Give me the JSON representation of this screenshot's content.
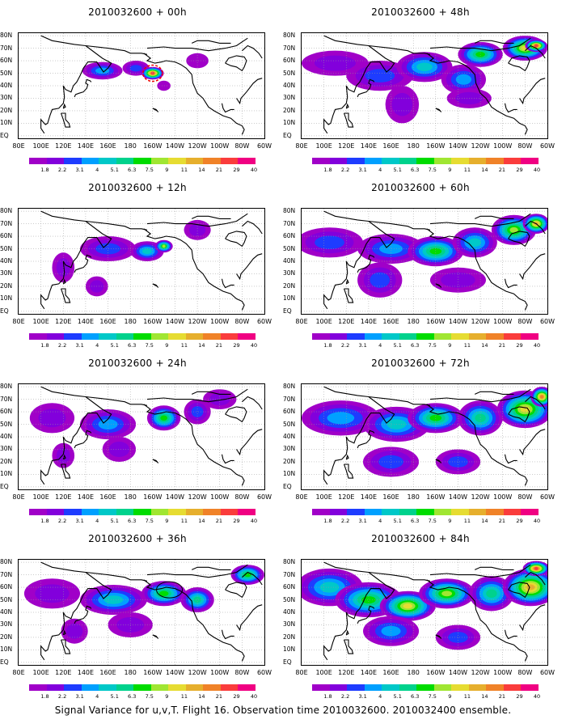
{
  "caption": "Signal Variance for u,v,T. Flight 16. Observation time 2010032600. 2010032400 ensemble.",
  "lat_labels": [
    "80N",
    "70N",
    "60N",
    "50N",
    "40N",
    "30N",
    "20N",
    "10N",
    "EQ"
  ],
  "lon_labels": [
    "80E",
    "100E",
    "120E",
    "140E",
    "160E",
    "180",
    "160W",
    "140W",
    "120W",
    "100W",
    "80W",
    "60W"
  ],
  "colorbar": {
    "labels": [
      "1.8",
      "2.2",
      "3.1",
      "4",
      "5.1",
      "6.3",
      "7.5",
      "9",
      "11",
      "14",
      "21",
      "29",
      "40"
    ],
    "colors": [
      "#a000c8",
      "#8200dc",
      "#1e3cff",
      "#00a0ff",
      "#00c8c8",
      "#00d28c",
      "#00dc00",
      "#a0e632",
      "#e6dc32",
      "#e6af2d",
      "#f08228",
      "#fa3c3c",
      "#f00082"
    ]
  },
  "chart_data": [
    {
      "type": "heatmap",
      "title": "2010032600 + 00h",
      "forecast_hour": 0,
      "blobs": [
        {
          "lon": 155,
          "lat": 52,
          "rx": 18,
          "ry": 7,
          "level": 3
        },
        {
          "lon": 185,
          "lat": 54,
          "rx": 12,
          "ry": 6,
          "level": 2
        },
        {
          "lon": -160,
          "lat": 50,
          "rx": 10,
          "ry": 5,
          "level": 11
        },
        {
          "lon": -120,
          "lat": 60,
          "rx": 10,
          "ry": 6,
          "level": 0
        },
        {
          "lon": -150,
          "lat": 40,
          "rx": 6,
          "ry": 4,
          "level": 0
        }
      ]
    },
    {
      "type": "heatmap",
      "title": "2010032600 + 48h",
      "forecast_hour": 48,
      "blobs": [
        {
          "lon": 110,
          "lat": 58,
          "rx": 30,
          "ry": 10,
          "level": 1
        },
        {
          "lon": 150,
          "lat": 48,
          "rx": 30,
          "ry": 12,
          "level": 2
        },
        {
          "lon": -170,
          "lat": 55,
          "rx": 25,
          "ry": 12,
          "level": 4
        },
        {
          "lon": -135,
          "lat": 45,
          "rx": 20,
          "ry": 12,
          "level": 3
        },
        {
          "lon": -120,
          "lat": 65,
          "rx": 20,
          "ry": 10,
          "level": 6
        },
        {
          "lon": -80,
          "lat": 70,
          "rx": 20,
          "ry": 10,
          "level": 8
        },
        {
          "lon": -70,
          "lat": 72,
          "rx": 10,
          "ry": 5,
          "level": 11
        },
        {
          "lon": 170,
          "lat": 25,
          "rx": 15,
          "ry": 15,
          "level": 1
        },
        {
          "lon": -130,
          "lat": 30,
          "rx": 20,
          "ry": 8,
          "level": 1
        }
      ]
    },
    {
      "type": "heatmap",
      "title": "2010032600 + 12h",
      "forecast_hour": 12,
      "blobs": [
        {
          "lon": 160,
          "lat": 50,
          "rx": 25,
          "ry": 10,
          "level": 2
        },
        {
          "lon": -165,
          "lat": 48,
          "rx": 15,
          "ry": 8,
          "level": 4
        },
        {
          "lon": -150,
          "lat": 52,
          "rx": 8,
          "ry": 5,
          "level": 7
        },
        {
          "lon": 120,
          "lat": 35,
          "rx": 10,
          "ry": 12,
          "level": 1
        },
        {
          "lon": -120,
          "lat": 65,
          "rx": 12,
          "ry": 8,
          "level": 1
        },
        {
          "lon": 150,
          "lat": 20,
          "rx": 10,
          "ry": 8,
          "level": 1
        }
      ]
    },
    {
      "type": "heatmap",
      "title": "2010032600 + 60h",
      "forecast_hour": 60,
      "blobs": [
        {
          "lon": 105,
          "lat": 55,
          "rx": 30,
          "ry": 12,
          "level": 2
        },
        {
          "lon": 160,
          "lat": 50,
          "rx": 30,
          "ry": 12,
          "level": 3
        },
        {
          "lon": -160,
          "lat": 48,
          "rx": 25,
          "ry": 12,
          "level": 6
        },
        {
          "lon": -125,
          "lat": 55,
          "rx": 20,
          "ry": 12,
          "level": 4
        },
        {
          "lon": -90,
          "lat": 65,
          "rx": 20,
          "ry": 12,
          "level": 7
        },
        {
          "lon": -70,
          "lat": 70,
          "rx": 12,
          "ry": 8,
          "level": 9
        },
        {
          "lon": 150,
          "lat": 25,
          "rx": 20,
          "ry": 14,
          "level": 2
        },
        {
          "lon": -140,
          "lat": 25,
          "rx": 25,
          "ry": 10,
          "level": 1
        }
      ]
    },
    {
      "type": "heatmap",
      "title": "2010032600 + 24h",
      "forecast_hour": 24,
      "blobs": [
        {
          "lon": 110,
          "lat": 55,
          "rx": 20,
          "ry": 12,
          "level": 1
        },
        {
          "lon": 160,
          "lat": 50,
          "rx": 25,
          "ry": 12,
          "level": 3
        },
        {
          "lon": -150,
          "lat": 55,
          "rx": 15,
          "ry": 10,
          "level": 6
        },
        {
          "lon": -120,
          "lat": 60,
          "rx": 12,
          "ry": 10,
          "level": 2
        },
        {
          "lon": 170,
          "lat": 30,
          "rx": 15,
          "ry": 10,
          "level": 1
        },
        {
          "lon": -100,
          "lat": 70,
          "rx": 15,
          "ry": 8,
          "level": 1
        },
        {
          "lon": 120,
          "lat": 25,
          "rx": 10,
          "ry": 10,
          "level": 1
        }
      ]
    },
    {
      "type": "heatmap",
      "title": "2010032600 + 72h",
      "forecast_hour": 72,
      "blobs": [
        {
          "lon": 115,
          "lat": 55,
          "rx": 35,
          "ry": 14,
          "level": 3
        },
        {
          "lon": 165,
          "lat": 50,
          "rx": 30,
          "ry": 14,
          "level": 4
        },
        {
          "lon": -160,
          "lat": 55,
          "rx": 25,
          "ry": 12,
          "level": 6
        },
        {
          "lon": -120,
          "lat": 55,
          "rx": 20,
          "ry": 14,
          "level": 5
        },
        {
          "lon": -80,
          "lat": 62,
          "rx": 25,
          "ry": 15,
          "level": 8
        },
        {
          "lon": -65,
          "lat": 72,
          "rx": 10,
          "ry": 8,
          "level": 10
        },
        {
          "lon": 160,
          "lat": 20,
          "rx": 25,
          "ry": 12,
          "level": 2
        },
        {
          "lon": -140,
          "lat": 20,
          "rx": 20,
          "ry": 10,
          "level": 2
        }
      ]
    },
    {
      "type": "heatmap",
      "title": "2010032600 + 36h",
      "forecast_hour": 36,
      "blobs": [
        {
          "lon": 110,
          "lat": 55,
          "rx": 25,
          "ry": 12,
          "level": 1
        },
        {
          "lon": 165,
          "lat": 50,
          "rx": 30,
          "ry": 12,
          "level": 4
        },
        {
          "lon": -150,
          "lat": 55,
          "rx": 20,
          "ry": 10,
          "level": 6
        },
        {
          "lon": -120,
          "lat": 50,
          "rx": 15,
          "ry": 10,
          "level": 5
        },
        {
          "lon": -75,
          "lat": 70,
          "rx": 15,
          "ry": 8,
          "level": 6
        },
        {
          "lon": 180,
          "lat": 30,
          "rx": 20,
          "ry": 10,
          "level": 1
        },
        {
          "lon": 130,
          "lat": 25,
          "rx": 12,
          "ry": 10,
          "level": 1
        }
      ]
    },
    {
      "type": "heatmap",
      "title": "2010032600 + 84h",
      "forecast_hour": 84,
      "blobs": [
        {
          "lon": 105,
          "lat": 60,
          "rx": 30,
          "ry": 15,
          "level": 4
        },
        {
          "lon": 140,
          "lat": 50,
          "rx": 30,
          "ry": 14,
          "level": 6
        },
        {
          "lon": 175,
          "lat": 45,
          "rx": 25,
          "ry": 12,
          "level": 8
        },
        {
          "lon": -150,
          "lat": 55,
          "rx": 25,
          "ry": 12,
          "level": 7
        },
        {
          "lon": -110,
          "lat": 55,
          "rx": 20,
          "ry": 14,
          "level": 5
        },
        {
          "lon": -75,
          "lat": 60,
          "rx": 25,
          "ry": 15,
          "level": 9
        },
        {
          "lon": -70,
          "lat": 75,
          "rx": 12,
          "ry": 6,
          "level": 11
        },
        {
          "lon": 160,
          "lat": 25,
          "rx": 25,
          "ry": 12,
          "level": 3
        },
        {
          "lon": -140,
          "lat": 20,
          "rx": 20,
          "ry": 10,
          "level": 2
        }
      ]
    }
  ]
}
